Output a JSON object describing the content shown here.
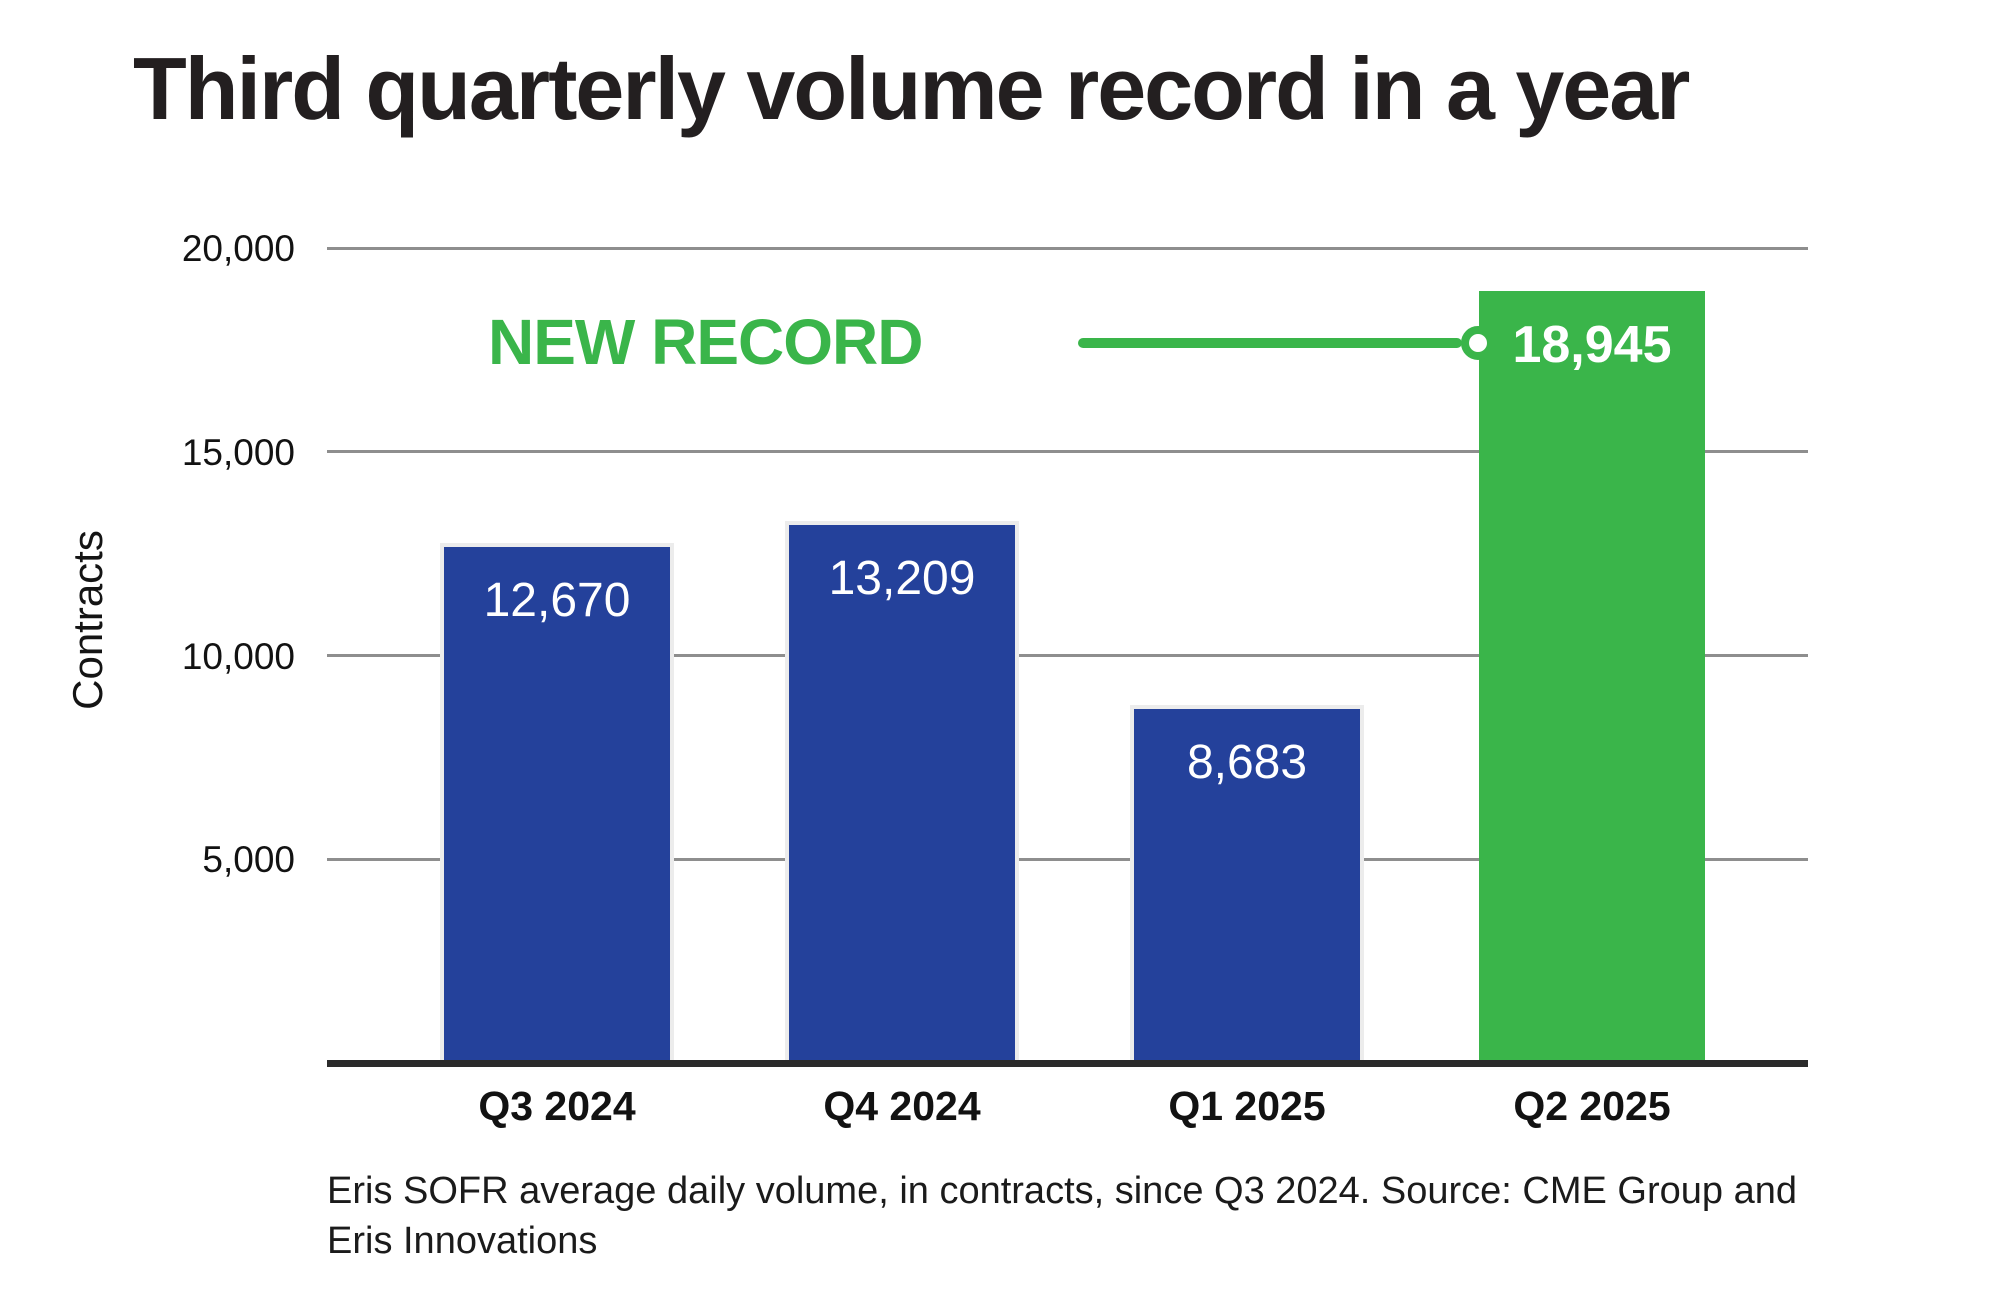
{
  "title": "Third quarterly volume record in a year",
  "chart_data": {
    "type": "bar",
    "title": "Third quarterly volume record in a year",
    "categories": [
      "Q3 2024",
      "Q4 2024",
      "Q1 2025",
      "Q2 2025"
    ],
    "values": [
      12670,
      13209,
      8683,
      18945
    ],
    "value_labels": [
      "12,670",
      "13,209",
      "8,683",
      "18,945"
    ],
    "xlabel": "",
    "ylabel": "Contracts",
    "ylim": [
      0,
      20000
    ],
    "yticks": [
      20000,
      15000,
      10000,
      5000
    ],
    "ytick_labels": [
      "20,000",
      "15,000",
      "10,000",
      "5,000"
    ],
    "grid": true,
    "legend": "none",
    "bar_colors": [
      "#24419B",
      "#24419B",
      "#24419B",
      "#3AB54A"
    ],
    "highlight_index": 3,
    "annotation": {
      "text": "NEW RECORD",
      "points_to": "Q2 2025",
      "value_label": "18,945"
    }
  },
  "colors": {
    "blue": "#24419B",
    "green": "#3AB54A",
    "gridline": "#8e8e8e",
    "axis": "#2B2B2B",
    "title_text": "#231F20"
  },
  "caption_lines": [
    "Eris SOFR average daily volume, in contracts, since Q3 2024. Source: CME Group and",
    "Eris Innovations"
  ]
}
